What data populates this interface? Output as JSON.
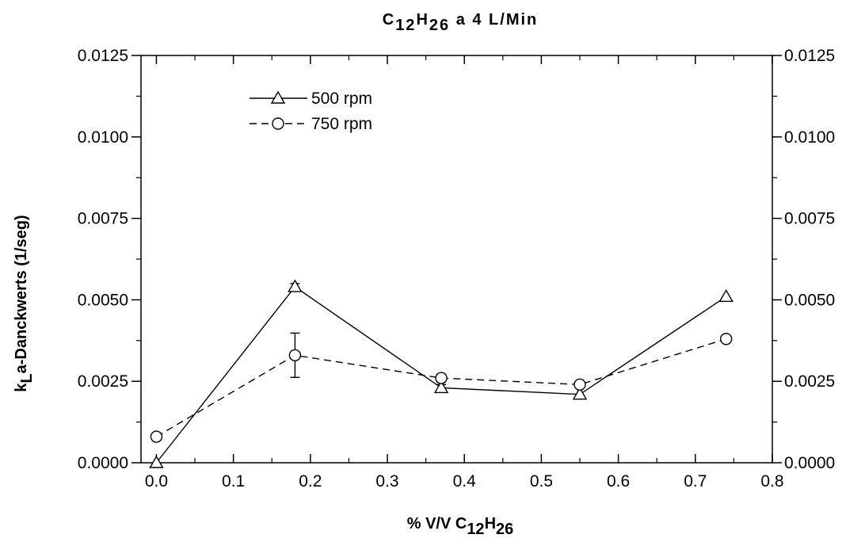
{
  "chart_data": {
    "type": "line",
    "title": {
      "parts": [
        {
          "text": "C",
          "shift": "base"
        },
        {
          "text": "12",
          "shift": "sub"
        },
        {
          "text": "H",
          "shift": "base"
        },
        {
          "text": "26",
          "shift": "sub"
        },
        {
          "text": "  a  4 L/Min",
          "shift": "base"
        }
      ]
    },
    "xlabel": {
      "parts": [
        {
          "text": "% V/V  C",
          "shift": "base"
        },
        {
          "text": "12",
          "shift": "sub"
        },
        {
          "text": "H",
          "shift": "base"
        },
        {
          "text": "26",
          "shift": "sub"
        }
      ]
    },
    "ylabel": {
      "parts": [
        {
          "text": "k",
          "shift": "base"
        },
        {
          "text": "L",
          "shift": "sub"
        },
        {
          "text": "a-Danckwerts (1/seg)",
          "shift": "base"
        }
      ]
    },
    "xlim": [
      -0.02,
      0.8
    ],
    "ylim": [
      0.0,
      0.0125
    ],
    "x_ticks": [
      "0.0",
      "0.1",
      "0.2",
      "0.3",
      "0.4",
      "0.5",
      "0.6",
      "0.7",
      "0.8"
    ],
    "x_tick_values": [
      0.0,
      0.1,
      0.2,
      0.3,
      0.4,
      0.5,
      0.6,
      0.7,
      0.8
    ],
    "y_ticks": [
      "0.0000",
      "0.0025",
      "0.0050",
      "0.0075",
      "0.0100",
      "0.0125"
    ],
    "y_tick_values": [
      0.0,
      0.0025,
      0.005,
      0.0075,
      0.01,
      0.0125
    ],
    "right_axis_mirrored": true,
    "grid": false,
    "legend_position": "top-left",
    "series": [
      {
        "name": "500 rpm",
        "marker": "triangle",
        "line_style": "solid",
        "x": [
          0.0,
          0.18,
          0.37,
          0.55,
          0.74
        ],
        "y": [
          0.0,
          0.0054,
          0.0023,
          0.0021,
          0.0051
        ],
        "error": [
          null,
          0.0001,
          0.0001,
          null,
          null
        ]
      },
      {
        "name": "750 rpm",
        "marker": "circle",
        "line_style": "dashed",
        "x": [
          0.0,
          0.18,
          0.37,
          0.55,
          0.74
        ],
        "y": [
          0.0008,
          0.0033,
          0.0026,
          0.0024,
          0.0038
        ],
        "error": [
          null,
          0.00068,
          0.00012,
          null,
          null
        ]
      }
    ]
  }
}
